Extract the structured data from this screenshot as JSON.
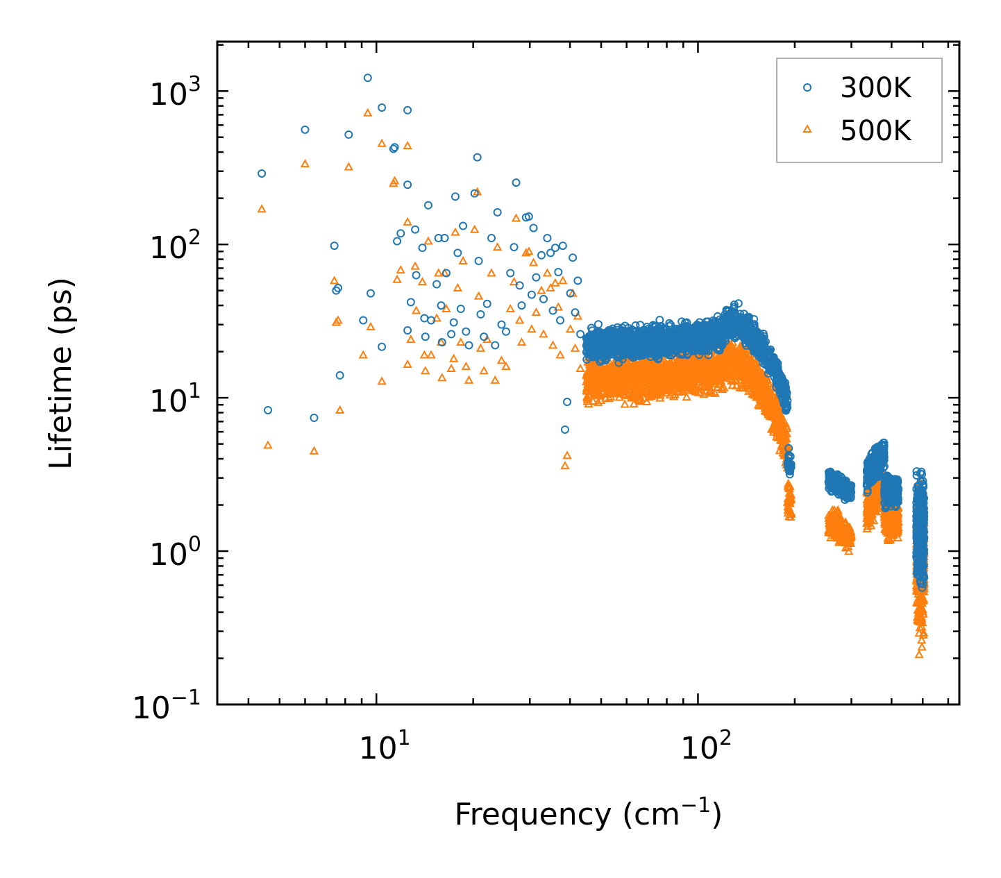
{
  "chart_data": {
    "type": "scatter",
    "title": "",
    "xlabel": "Frequency (cm",
    "xlabel_exp": "−1",
    "xlabel_end": ")",
    "ylabel": "Lifetime (ps)",
    "xscale": "log",
    "yscale": "log",
    "xlim": [
      3.2,
      650
    ],
    "ylim": [
      0.1,
      2100
    ],
    "x_ticks": [
      {
        "value": 10,
        "base": "10",
        "exp": "1"
      },
      {
        "value": 100,
        "base": "10",
        "exp": "2"
      }
    ],
    "y_ticks": [
      {
        "value": 0.1,
        "base": "10",
        "exp": "−1"
      },
      {
        "value": 1,
        "base": "10",
        "exp": "0"
      },
      {
        "value": 10,
        "base": "10",
        "exp": "1"
      },
      {
        "value": 100,
        "base": "10",
        "exp": "2"
      },
      {
        "value": 1000,
        "base": "10",
        "exp": "3"
      }
    ],
    "legend_position": "top-right",
    "series": [
      {
        "name": "300K",
        "marker": "circle",
        "color": "#1f77b4",
        "points": [
          [
            4.4,
            290
          ],
          [
            4.6,
            8.3
          ],
          [
            6.0,
            560
          ],
          [
            6.4,
            7.4
          ],
          [
            7.4,
            98
          ],
          [
            7.5,
            50
          ],
          [
            7.6,
            52
          ],
          [
            7.7,
            14
          ],
          [
            8.2,
            520
          ],
          [
            9.1,
            32
          ],
          [
            9.4,
            1220
          ],
          [
            9.6,
            48
          ],
          [
            10.4,
            780
          ],
          [
            10.4,
            21.5
          ],
          [
            11.3,
            420
          ],
          [
            11.4,
            430
          ],
          [
            11.6,
            105
          ],
          [
            11.9,
            118
          ],
          [
            12.5,
            245
          ],
          [
            12.5,
            750
          ],
          [
            12.5,
            27.5
          ],
          [
            12.8,
            42
          ],
          [
            13.2,
            125
          ],
          [
            13.3,
            63
          ],
          [
            13.9,
            95
          ],
          [
            14.1,
            33
          ],
          [
            14.2,
            25
          ],
          [
            14.5,
            180
          ],
          [
            14.8,
            32
          ],
          [
            15.4,
            55
          ],
          [
            15.6,
            110
          ],
          [
            15.9,
            40
          ],
          [
            16.0,
            23
          ],
          [
            16.3,
            110
          ],
          [
            16.5,
            65
          ],
          [
            17.1,
            26
          ],
          [
            17.4,
            31
          ],
          [
            17.6,
            205
          ],
          [
            17.9,
            88
          ],
          [
            18.3,
            38
          ],
          [
            18.6,
            132
          ],
          [
            19.0,
            27
          ],
          [
            19.4,
            22
          ],
          [
            20.2,
            215
          ],
          [
            20.6,
            370
          ],
          [
            20.8,
            78
          ],
          [
            21.1,
            35
          ],
          [
            21.6,
            25
          ],
          [
            22.1,
            41
          ],
          [
            22.8,
            110
          ],
          [
            23.4,
            22
          ],
          [
            23.8,
            162
          ],
          [
            24.5,
            30
          ],
          [
            25.3,
            27
          ],
          [
            26.1,
            65
          ],
          [
            26.8,
            96
          ],
          [
            27.2,
            253
          ],
          [
            27.9,
            54
          ],
          [
            28.3,
            40
          ],
          [
            29.2,
            150
          ],
          [
            29.8,
            152
          ],
          [
            30.4,
            47
          ],
          [
            30.8,
            128
          ],
          [
            31.4,
            61
          ],
          [
            32.6,
            85
          ],
          [
            33.1,
            44
          ],
          [
            34.0,
            110
          ],
          [
            34.8,
            88
          ],
          [
            35.4,
            37
          ],
          [
            36.0,
            95
          ],
          [
            36.8,
            66
          ],
          [
            37.3,
            32
          ],
          [
            38.0,
            98
          ],
          [
            38.6,
            6.2
          ],
          [
            39.2,
            9.4
          ],
          [
            40.1,
            48
          ],
          [
            40.8,
            82
          ],
          [
            41.5,
            36
          ],
          [
            42.3,
            58
          ],
          [
            43.1,
            26
          ]
        ]
      },
      {
        "name": "500K",
        "marker": "triangle",
        "color": "#ff7f0e",
        "points": [
          [
            4.4,
            170
          ],
          [
            4.6,
            4.9
          ],
          [
            6.0,
            335
          ],
          [
            6.4,
            4.5
          ],
          [
            7.4,
            58
          ],
          [
            7.5,
            31
          ],
          [
            7.6,
            32
          ],
          [
            7.7,
            8.3
          ],
          [
            8.2,
            320
          ],
          [
            9.1,
            19
          ],
          [
            9.4,
            720
          ],
          [
            9.6,
            29
          ],
          [
            10.4,
            455
          ],
          [
            10.4,
            12.8
          ],
          [
            11.3,
            250
          ],
          [
            11.4,
            260
          ],
          [
            11.6,
            59
          ],
          [
            11.9,
            68
          ],
          [
            12.5,
            140
          ],
          [
            12.5,
            440
          ],
          [
            12.5,
            16.5
          ],
          [
            12.8,
            24
          ],
          [
            13.2,
            72
          ],
          [
            13.3,
            37
          ],
          [
            13.9,
            57
          ],
          [
            14.1,
            19
          ],
          [
            14.2,
            15
          ],
          [
            14.5,
            105
          ],
          [
            14.8,
            19
          ],
          [
            15.4,
            33
          ],
          [
            15.6,
            65
          ],
          [
            15.9,
            23
          ],
          [
            16.0,
            13.5
          ],
          [
            16.3,
            65
          ],
          [
            16.5,
            38
          ],
          [
            17.1,
            15.5
          ],
          [
            17.4,
            18
          ],
          [
            17.6,
            120
          ],
          [
            17.9,
            52
          ],
          [
            18.3,
            23
          ],
          [
            18.6,
            78
          ],
          [
            19.0,
            16
          ],
          [
            19.4,
            13
          ],
          [
            20.2,
            125
          ],
          [
            20.6,
            220
          ],
          [
            20.8,
            46
          ],
          [
            21.1,
            21
          ],
          [
            21.6,
            15
          ],
          [
            22.1,
            24
          ],
          [
            22.8,
            65
          ],
          [
            23.4,
            13
          ],
          [
            23.8,
            96
          ],
          [
            24.5,
            17.5
          ],
          [
            25.3,
            16
          ],
          [
            26.1,
            38
          ],
          [
            26.8,
            57
          ],
          [
            27.2,
            148
          ],
          [
            27.9,
            32
          ],
          [
            28.3,
            23
          ],
          [
            29.2,
            88
          ],
          [
            29.8,
            90
          ],
          [
            30.4,
            28
          ],
          [
            30.8,
            76
          ],
          [
            31.4,
            36
          ],
          [
            32.6,
            50
          ],
          [
            33.1,
            26
          ],
          [
            34.0,
            65
          ],
          [
            34.8,
            52
          ],
          [
            35.4,
            22
          ],
          [
            36.0,
            56
          ],
          [
            36.8,
            39
          ],
          [
            37.3,
            19
          ],
          [
            38.0,
            58
          ],
          [
            38.6,
            3.6
          ],
          [
            39.2,
            4.2
          ],
          [
            40.1,
            28
          ],
          [
            40.8,
            48
          ],
          [
            41.5,
            21
          ],
          [
            42.3,
            34
          ],
          [
            43.1,
            15.5
          ]
        ]
      }
    ],
    "dense_bands": [
      {
        "series": "300K",
        "x_range": [
          45,
          190
        ],
        "description": "dense cluster"
      },
      {
        "series": "500K",
        "x_range": [
          45,
          190
        ],
        "description": "dense cluster"
      },
      {
        "series": "300K",
        "x_range": [
          250,
          510
        ],
        "description": "dense cluster"
      },
      {
        "series": "500K",
        "x_range": [
          250,
          510
        ],
        "description": "dense cluster"
      }
    ]
  }
}
